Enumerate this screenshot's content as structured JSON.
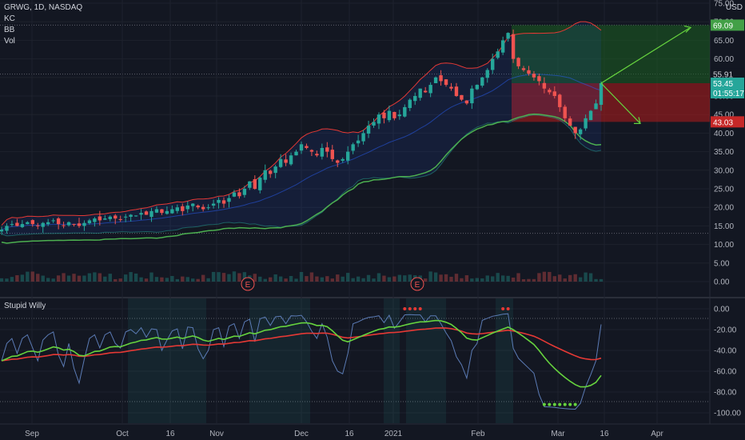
{
  "header": {
    "symbol_line": "GRWG, 1D, NASDAQ",
    "currency": "USD"
  },
  "indicators": {
    "kc": "KC",
    "bb": "BB",
    "vol": "Vol"
  },
  "lower_pane": {
    "title": "Stupid Willy"
  },
  "earnings_marker": "E",
  "price_labels": {
    "target": "69.09",
    "last": "55.91",
    "current": "53.45",
    "countdown": "01:55:17",
    "stop": "43.03"
  },
  "colors": {
    "background": "#131722",
    "up": "#26a69a",
    "down": "#ef5350",
    "keltner": "#4caf50",
    "bollinger": "#e53935",
    "willy": "#5b7bb5",
    "signal_green": "#66d33e",
    "signal_red": "#e53935",
    "profit_zone": "#1b5e20",
    "loss_zone": "#b71c1c"
  },
  "chart_data": [
    {
      "type": "candlestick",
      "title": "GRWG, 1D, NASDAQ",
      "y_ticks": [
        "75.00",
        "70.00",
        "65.00",
        "60.00",
        "55.00",
        "50.00",
        "45.00",
        "40.00",
        "35.00",
        "30.00",
        "25.00",
        "20.00",
        "15.00",
        "10.00",
        "5.00",
        "0.00"
      ],
      "ylim": [
        0,
        75
      ],
      "x_ticks": [
        "Sep",
        "Oct",
        "16",
        "Nov",
        "Dec",
        "16",
        "2021",
        "Feb",
        "Mar",
        "16",
        "Apr"
      ],
      "price_path": [
        14,
        15,
        15.5,
        15,
        15.5,
        16,
        15.5,
        15,
        15.8,
        16,
        16.5,
        15.5,
        15,
        16,
        15.5,
        15,
        15.8,
        16.5,
        17,
        16.5,
        17,
        17.5,
        17,
        16.8,
        17.5,
        18,
        17.8,
        18.5,
        18,
        19,
        19.5,
        18.5,
        19,
        19.5,
        20,
        19,
        20.5,
        21,
        20,
        19.5,
        20,
        21,
        22,
        21,
        22.5,
        24,
        23,
        25,
        27,
        25,
        28,
        30,
        29,
        31,
        33,
        32,
        34,
        35,
        37,
        36,
        35,
        34,
        36,
        35,
        33,
        32,
        33,
        35,
        37,
        38,
        40,
        42,
        43,
        45,
        44,
        46,
        44,
        45,
        47,
        49,
        50,
        52,
        51,
        53,
        55,
        54,
        53,
        52,
        50,
        49,
        48,
        52,
        53,
        55,
        57,
        60,
        62,
        65,
        67,
        60,
        58,
        57,
        56,
        55,
        54,
        52,
        51,
        50,
        47,
        44,
        42,
        40,
        41,
        44,
        46,
        48,
        53.45
      ],
      "trade_setup": {
        "entry": 53.45,
        "target": 69.09,
        "stop": 43.03
      }
    },
    {
      "type": "line",
      "title": "Stupid Willy",
      "y_ticks": [
        "0.00",
        "-20.00",
        "-40.00",
        "-60.00",
        "-80.00",
        "-100.00"
      ],
      "ylim": [
        -100,
        0
      ],
      "series": []
    }
  ]
}
